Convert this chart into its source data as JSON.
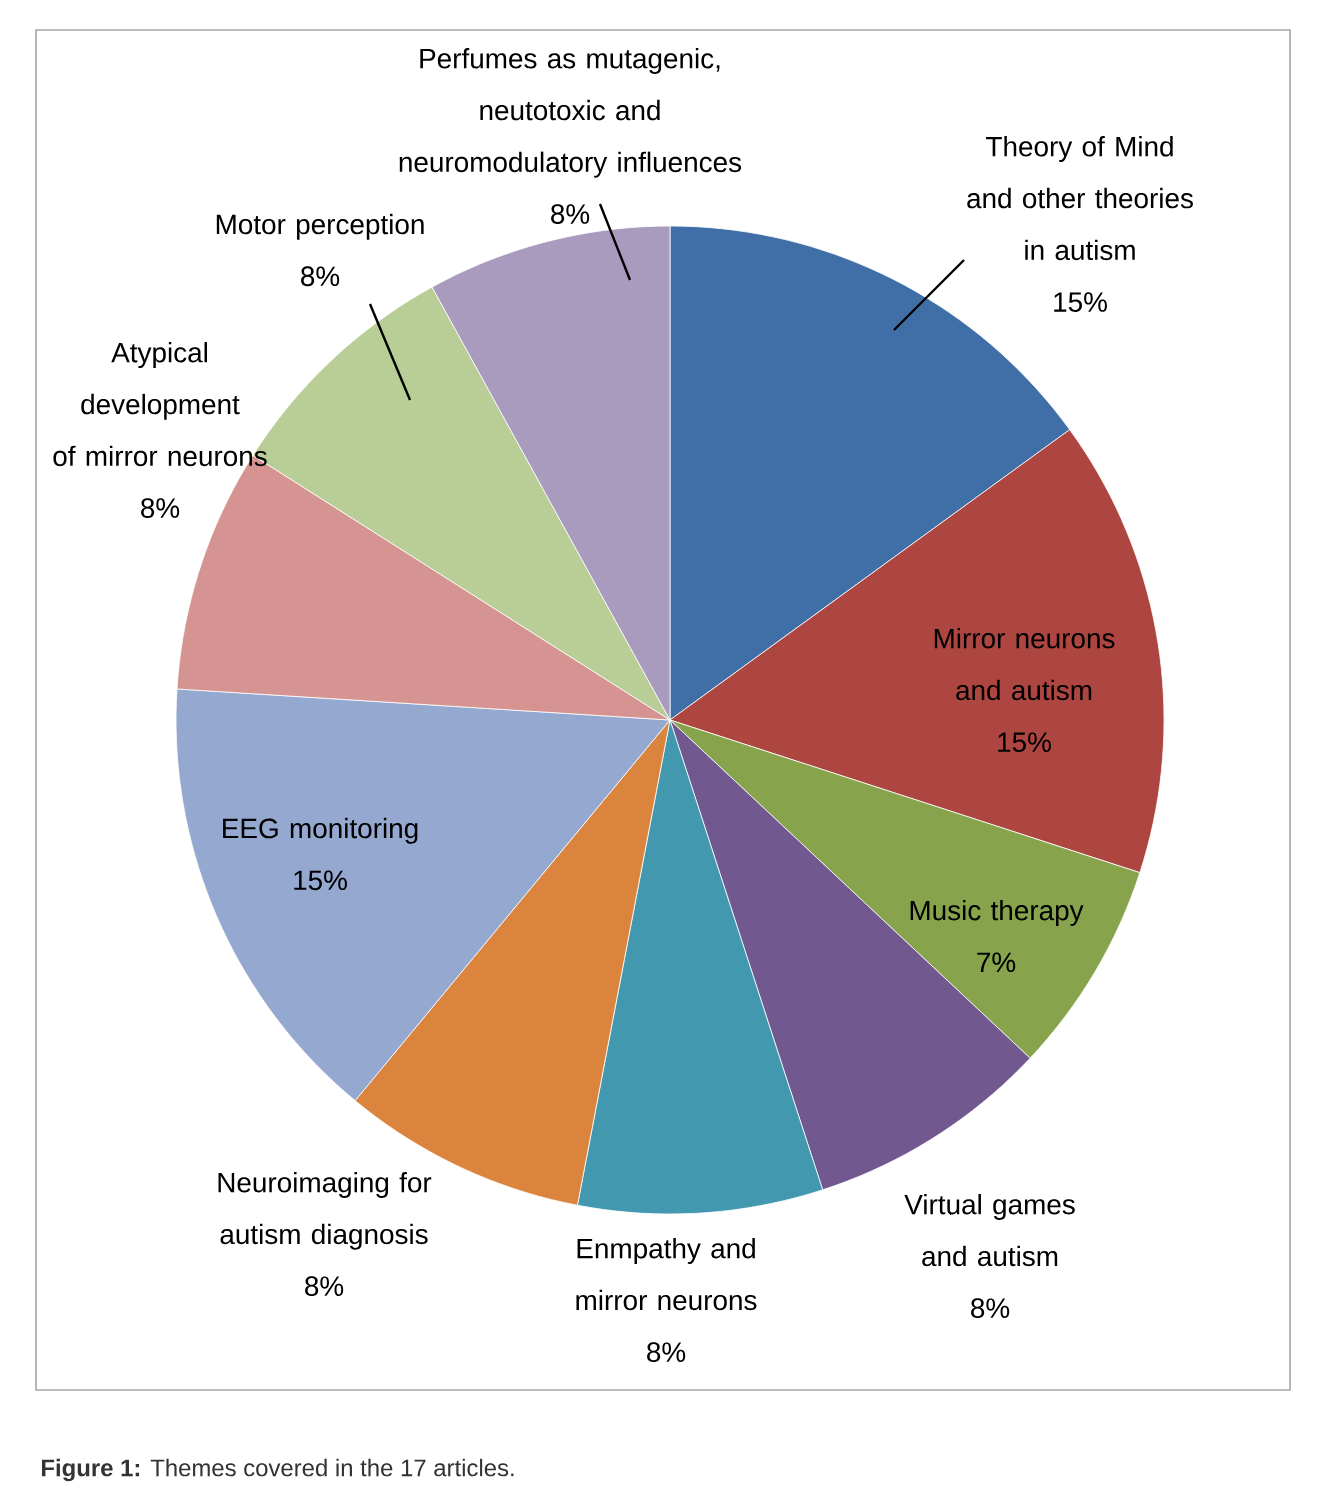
{
  "chart_data": {
    "type": "pie",
    "categories": [
      "Theory of Mind and other theories in autism",
      "Mirror neurons and autism",
      "Music therapy",
      "Virtual games and autism",
      "Enmpathy and mirror neurons",
      "Neuroimaging for autism diagnosis",
      "EEG monitoring",
      "Atypical development of mirror neurons",
      "Motor perception",
      "Perfumes as mutagenic, neutotoxic and neuromodulatory influences"
    ],
    "values": [
      15,
      15,
      7,
      8,
      8,
      8,
      15,
      8,
      8,
      8
    ],
    "value_labels": [
      "15%",
      "15%",
      "7%",
      "8%",
      "8%",
      "8%",
      "15%",
      "8%",
      "8%",
      "8%"
    ],
    "colors": [
      "#3f6fa6",
      "#ad4540",
      "#87a34b",
      "#71588f",
      "#4198af",
      "#db843d",
      "#94a8d0",
      "#d59491",
      "#b9cd96",
      "#a99bbd"
    ],
    "annotations": [
      "**Figure 1:** Themes covered in the 17 articles."
    ]
  }
}
